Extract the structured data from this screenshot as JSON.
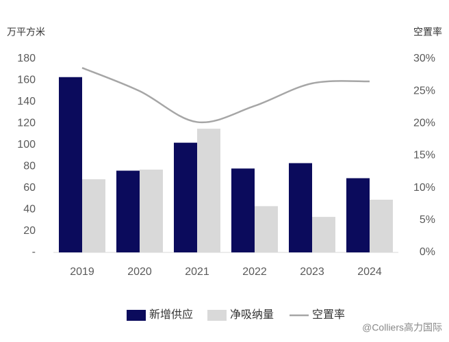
{
  "chart_data": {
    "type": "bar_line",
    "y_label": "万平方米",
    "y2_label": "空置率",
    "categories": [
      "2019",
      "2020",
      "2021",
      "2022",
      "2023",
      "2024"
    ],
    "series": [
      {
        "name": "新增供应",
        "type": "bar",
        "color": "#0b0b5c",
        "values": [
          163,
          76,
          102,
          78,
          83,
          69
        ]
      },
      {
        "name": "净吸纳量",
        "type": "bar",
        "color": "#d9d9d9",
        "values": [
          68,
          77,
          115,
          43,
          33,
          49
        ]
      },
      {
        "name": "空置率",
        "type": "line",
        "axis": "y2",
        "color": "#a6a6a6",
        "values": [
          28.6,
          25.0,
          20.2,
          22.7,
          26.2,
          26.5
        ]
      }
    ],
    "ylim": [
      0,
      180
    ],
    "yticks": [
      {
        "value": 0,
        "label": "-"
      },
      20,
      40,
      60,
      80,
      100,
      120,
      140,
      160,
      180
    ],
    "y2lim": [
      0,
      30
    ],
    "y2ticks": [
      {
        "value": 0,
        "label": "0%"
      },
      {
        "value": 5,
        "label": "5%"
      },
      {
        "value": 10,
        "label": "10%"
      },
      {
        "value": 15,
        "label": "15%"
      },
      {
        "value": 20,
        "label": "20%"
      },
      {
        "value": 25,
        "label": "25%"
      },
      {
        "value": 30,
        "label": "30%"
      }
    ],
    "legend": "bottom",
    "watermark": "@Colliers高力国际"
  }
}
